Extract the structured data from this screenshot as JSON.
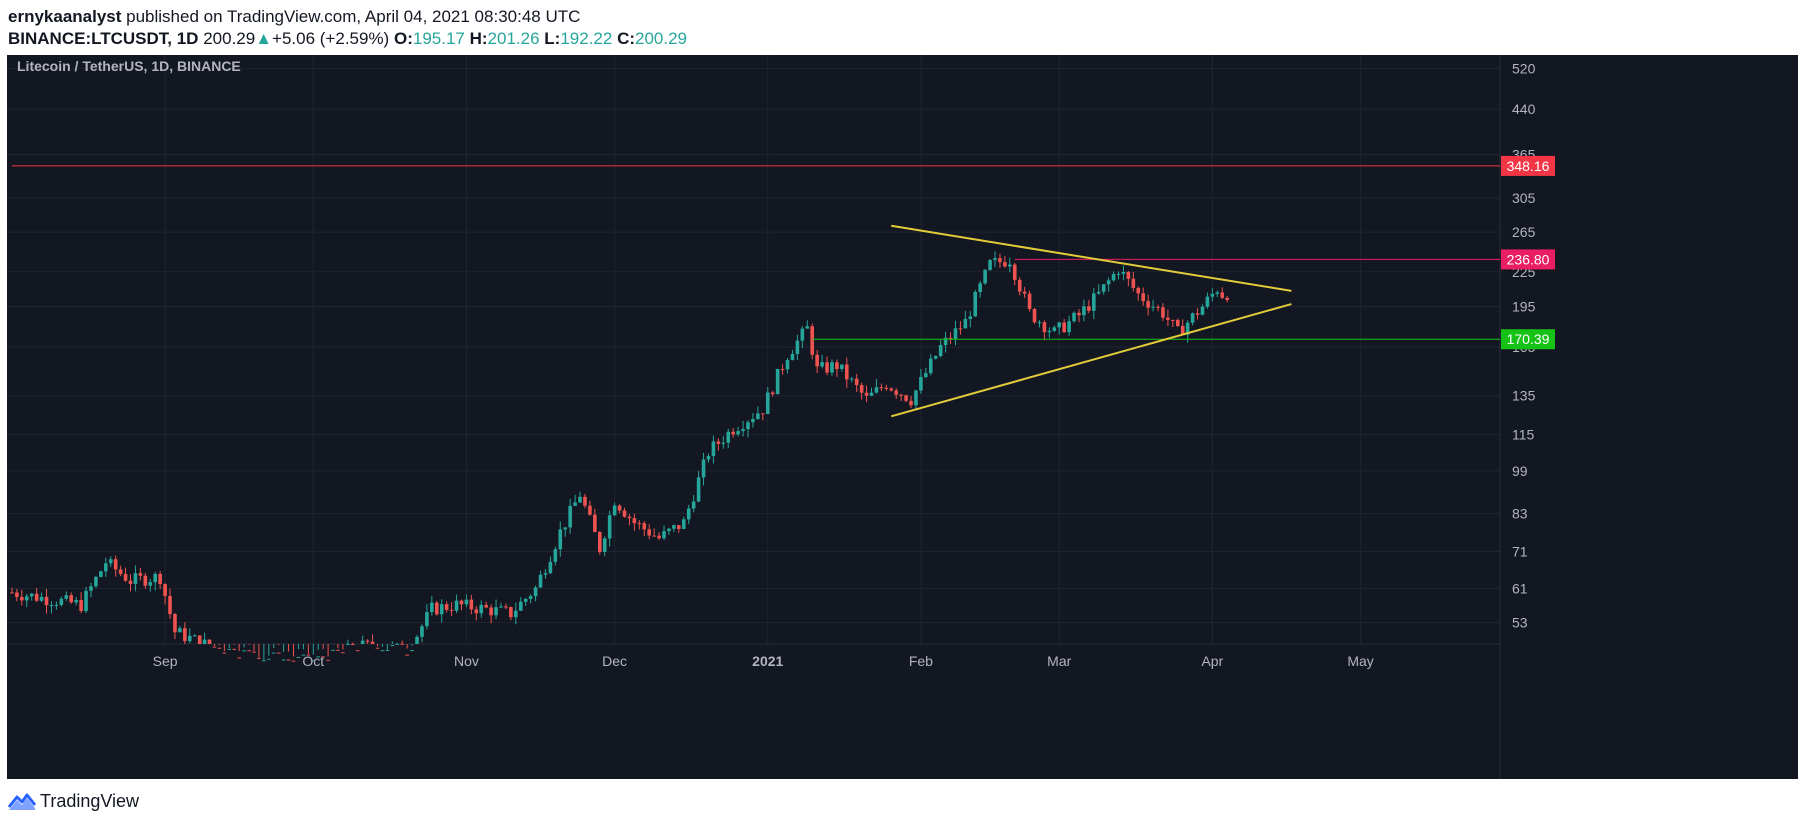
{
  "header": {
    "author": "ernykaanalyst",
    "published_text": "published on TradingView.com, April 04, 2021 08:30:48 UTC",
    "symbol": "BINANCE:LTCUSDT, 1D",
    "price": "200.29",
    "change": "+5.06 (+2.59%)",
    "o_label": "O:",
    "o_value": "195.17",
    "h_label": "H:",
    "h_value": "201.26",
    "l_label": "L:",
    "l_value": "192.22",
    "c_label": "C:",
    "c_value": "200.29"
  },
  "footer": {
    "brand": "TradingView"
  },
  "colors": {
    "background": "#131722",
    "grid": "#1f2430",
    "up": "#26a69a",
    "down": "#ef5350",
    "axis_text": "#b2b5be",
    "triangle": "#e2cc3a",
    "line_348": "#f23645",
    "line_236": "#e91e63",
    "line_170": "#17c217"
  },
  "chart_data": {
    "type": "candlestick",
    "title": "Litecoin / TetherUS, 1D, BINANCE",
    "y_scale": "log",
    "y_ticks": [
      53,
      61,
      71,
      83,
      99,
      115,
      135,
      165,
      195,
      225,
      265,
      305,
      365,
      440,
      520
    ],
    "x_ticks": [
      {
        "label": "Sep",
        "date": "2020-09-01",
        "bold": false
      },
      {
        "label": "Oct",
        "date": "2020-10-01",
        "bold": false
      },
      {
        "label": "Nov",
        "date": "2020-11-01",
        "bold": false
      },
      {
        "label": "Dec",
        "date": "2020-12-01",
        "bold": false
      },
      {
        "label": "2021",
        "date": "2021-01-01",
        "bold": true
      },
      {
        "label": "Feb",
        "date": "2021-02-01",
        "bold": false
      },
      {
        "label": "Mar",
        "date": "2021-03-01",
        "bold": false
      },
      {
        "label": "Apr",
        "date": "2021-04-01",
        "bold": false
      },
      {
        "label": "May",
        "date": "2021-05-01",
        "bold": false
      }
    ],
    "horizontal_levels": [
      {
        "value": 348.16,
        "label": "348.16",
        "color": "#f23645",
        "from": "2020-08-01"
      },
      {
        "value": 236.8,
        "label": "236.80",
        "color": "#e91e63",
        "from": "2021-02-20"
      },
      {
        "value": 170.39,
        "label": "170.39",
        "color": "#17c217",
        "from": "2021-01-10"
      }
    ],
    "trendlines": [
      {
        "from": [
          "2021-01-26",
          272
        ],
        "to": [
          "2021-04-17",
          208
        ],
        "color": "#e2cc3a"
      },
      {
        "from": [
          "2021-01-26",
          124
        ],
        "to": [
          "2021-04-17",
          197
        ],
        "color": "#e2cc3a"
      }
    ],
    "closes": [
      [
        "2020-08-01",
        60
      ],
      [
        "2020-08-15",
        57
      ],
      [
        "2020-08-20",
        68
      ],
      [
        "2020-08-25",
        63
      ],
      [
        "2020-08-31",
        64
      ],
      [
        "2020-09-03",
        51
      ],
      [
        "2020-09-10",
        48
      ],
      [
        "2020-09-20",
        46
      ],
      [
        "2020-09-30",
        45
      ],
      [
        "2020-10-05",
        46
      ],
      [
        "2020-10-10",
        48
      ],
      [
        "2020-10-15",
        48
      ],
      [
        "2020-10-20",
        47
      ],
      [
        "2020-10-25",
        56
      ],
      [
        "2020-10-30",
        57
      ],
      [
        "2020-11-05",
        56
      ],
      [
        "2020-11-10",
        55
      ],
      [
        "2020-11-15",
        61
      ],
      [
        "2020-11-20",
        77
      ],
      [
        "2020-11-24",
        90
      ],
      [
        "2020-11-28",
        72
      ],
      [
        "2020-12-01",
        88
      ],
      [
        "2020-12-05",
        80
      ],
      [
        "2020-12-10",
        75
      ],
      [
        "2020-12-15",
        80
      ],
      [
        "2020-12-20",
        107
      ],
      [
        "2020-12-25",
        118
      ],
      [
        "2020-12-31",
        128
      ],
      [
        "2021-01-05",
        160
      ],
      [
        "2021-01-09",
        178
      ],
      [
        "2021-01-11",
        150
      ],
      [
        "2021-01-15",
        153
      ],
      [
        "2021-01-21",
        133
      ],
      [
        "2021-01-25",
        142
      ],
      [
        "2021-01-30",
        133
      ],
      [
        "2021-02-05",
        165
      ],
      [
        "2021-02-10",
        183
      ],
      [
        "2021-02-15",
        232
      ],
      [
        "2021-02-19",
        237
      ],
      [
        "2021-02-23",
        190
      ],
      [
        "2021-02-28",
        175
      ],
      [
        "2021-03-05",
        188
      ],
      [
        "2021-03-09",
        205
      ],
      [
        "2021-03-13",
        228
      ],
      [
        "2021-03-17",
        205
      ],
      [
        "2021-03-22",
        190
      ],
      [
        "2021-03-25",
        175
      ],
      [
        "2021-03-30",
        195
      ],
      [
        "2021-04-02",
        210
      ],
      [
        "2021-04-04",
        200.29
      ]
    ]
  }
}
